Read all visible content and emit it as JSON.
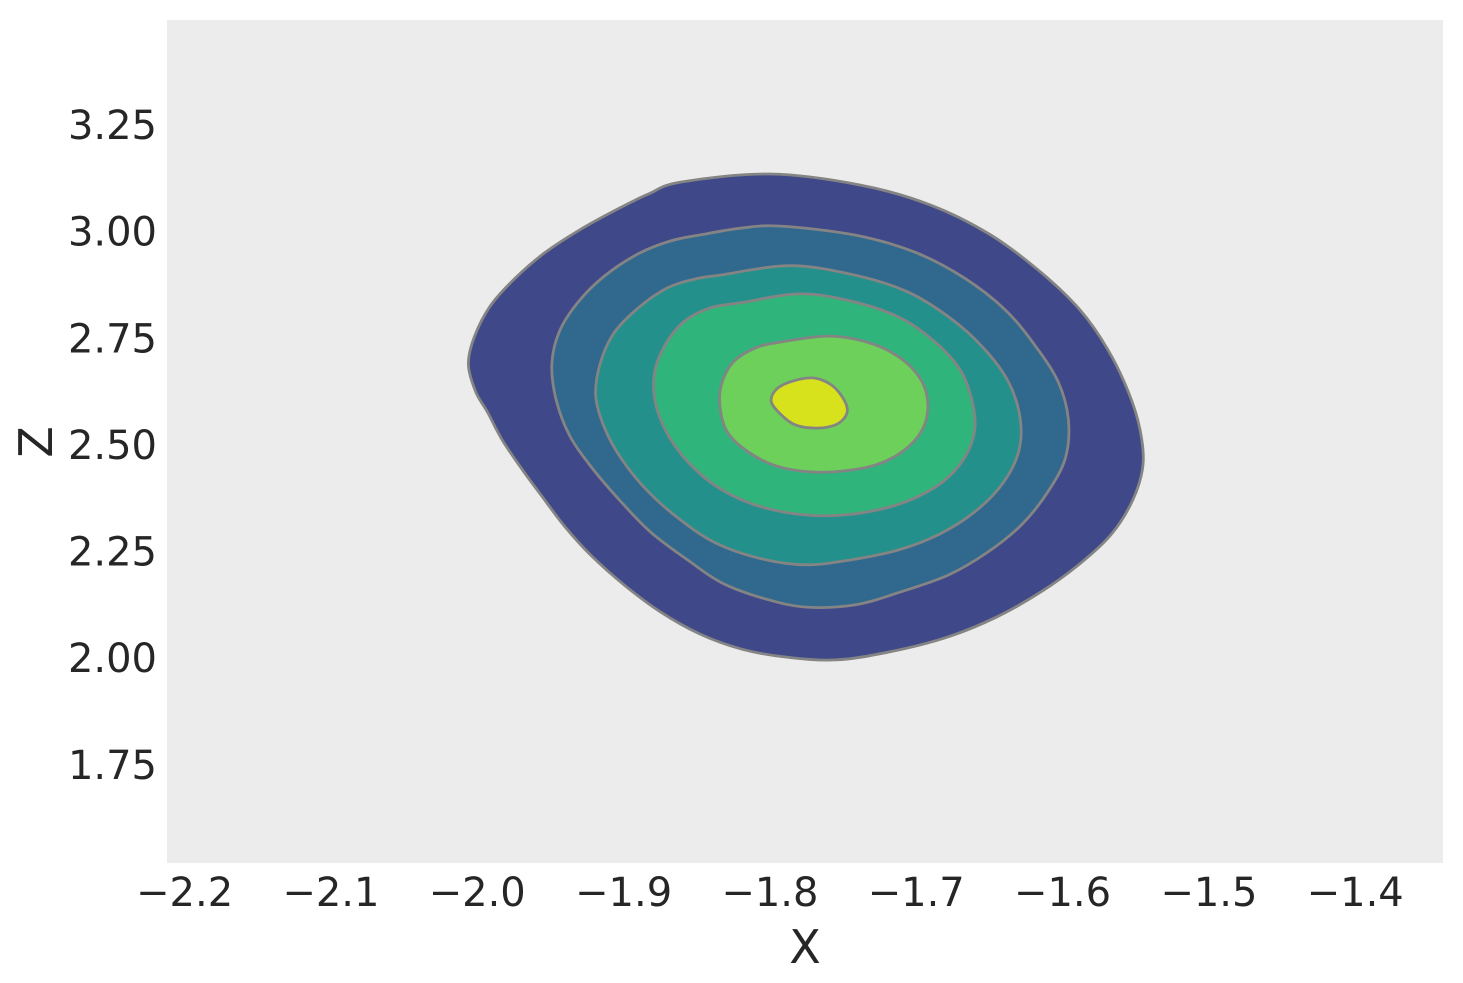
{
  "figure": {
    "background": "#ffffff",
    "plot_bg": "#ececec",
    "text_color": "#262626"
  },
  "chart_data": {
    "type": "contour-kde-filled",
    "title": "",
    "xlabel": "X",
    "ylabel": "Z",
    "xlim": [
      -2.212,
      -1.34
    ],
    "ylim": [
      1.52,
      3.496
    ],
    "grid": false,
    "legend": "none",
    "contour_line_color": "#848484",
    "x_tick_values": [
      -2.2,
      -2.1,
      -2.0,
      -1.9,
      -1.8,
      -1.7,
      -1.6,
      -1.5,
      -1.4
    ],
    "x_tick_labels": [
      "−2.2",
      "−2.1",
      "−2.0",
      "−1.9",
      "−1.8",
      "−1.7",
      "−1.6",
      "−1.5",
      "−1.4"
    ],
    "y_tick_values": [
      1.75,
      2.0,
      2.25,
      2.5,
      2.75,
      3.0,
      3.25
    ],
    "y_tick_labels": [
      "1.75",
      "2.00",
      "2.25",
      "2.50",
      "2.75",
      "3.00",
      "3.25"
    ],
    "peak": {
      "x": -1.775,
      "z": 2.6
    },
    "levels": [
      {
        "name": "density-level-1",
        "fill": "#3f4889",
        "points": [
          [
            -1.861,
            3.116
          ],
          [
            -1.8,
            3.135
          ],
          [
            -1.738,
            3.109
          ],
          [
            -1.69,
            3.062
          ],
          [
            -1.649,
            2.992
          ],
          [
            -1.615,
            2.905
          ],
          [
            -1.588,
            2.816
          ],
          [
            -1.569,
            2.723
          ],
          [
            -1.555,
            2.624
          ],
          [
            -1.547,
            2.535
          ],
          [
            -1.545,
            2.453
          ],
          [
            -1.552,
            2.371
          ],
          [
            -1.567,
            2.289
          ],
          [
            -1.589,
            2.219
          ],
          [
            -1.615,
            2.155
          ],
          [
            -1.646,
            2.095
          ],
          [
            -1.68,
            2.048
          ],
          [
            -1.718,
            2.015
          ],
          [
            -1.755,
            1.996
          ],
          [
            -1.79,
            2.003
          ],
          [
            -1.82,
            2.022
          ],
          [
            -1.848,
            2.057
          ],
          [
            -1.875,
            2.109
          ],
          [
            -1.899,
            2.17
          ],
          [
            -1.922,
            2.24
          ],
          [
            -1.94,
            2.308
          ],
          [
            -1.955,
            2.376
          ],
          [
            -1.969,
            2.441
          ],
          [
            -1.983,
            2.512
          ],
          [
            -1.993,
            2.577
          ],
          [
            -2.001,
            2.624
          ],
          [
            -2.006,
            2.688
          ],
          [
            -2.002,
            2.753
          ],
          [
            -1.991,
            2.826
          ],
          [
            -1.974,
            2.891
          ],
          [
            -1.954,
            2.95
          ],
          [
            -1.93,
            3.004
          ],
          [
            -1.904,
            3.053
          ],
          [
            -1.883,
            3.088
          ]
        ]
      },
      {
        "name": "density-level-2",
        "fill": "#31688e",
        "points": [
          [
            -1.793,
            3.013
          ],
          [
            -1.742,
            2.992
          ],
          [
            -1.701,
            2.952
          ],
          [
            -1.667,
            2.891
          ],
          [
            -1.639,
            2.816
          ],
          [
            -1.619,
            2.734
          ],
          [
            -1.603,
            2.648
          ],
          [
            -1.596,
            2.559
          ],
          [
            -1.598,
            2.47
          ],
          [
            -1.61,
            2.39
          ],
          [
            -1.628,
            2.313
          ],
          [
            -1.651,
            2.249
          ],
          [
            -1.678,
            2.195
          ],
          [
            -1.711,
            2.155
          ],
          [
            -1.742,
            2.125
          ],
          [
            -1.776,
            2.12
          ],
          [
            -1.805,
            2.141
          ],
          [
            -1.833,
            2.177
          ],
          [
            -1.856,
            2.23
          ],
          [
            -1.881,
            2.294
          ],
          [
            -1.901,
            2.364
          ],
          [
            -1.922,
            2.448
          ],
          [
            -1.937,
            2.523
          ],
          [
            -1.946,
            2.605
          ],
          [
            -1.949,
            2.688
          ],
          [
            -1.944,
            2.765
          ],
          [
            -1.931,
            2.835
          ],
          [
            -1.913,
            2.896
          ],
          [
            -1.89,
            2.948
          ],
          [
            -1.868,
            2.978
          ],
          [
            -1.848,
            2.992
          ],
          [
            -1.82,
            3.008
          ]
        ]
      },
      {
        "name": "density-level-3",
        "fill": "#23908b",
        "points": [
          [
            -1.786,
            2.92
          ],
          [
            -1.742,
            2.898
          ],
          [
            -1.706,
            2.859
          ],
          [
            -1.677,
            2.798
          ],
          [
            -1.654,
            2.727
          ],
          [
            -1.637,
            2.648
          ],
          [
            -1.629,
            2.563
          ],
          [
            -1.63,
            2.484
          ],
          [
            -1.641,
            2.409
          ],
          [
            -1.66,
            2.343
          ],
          [
            -1.684,
            2.291
          ],
          [
            -1.712,
            2.254
          ],
          [
            -1.744,
            2.231
          ],
          [
            -1.776,
            2.219
          ],
          [
            -1.808,
            2.235
          ],
          [
            -1.837,
            2.27
          ],
          [
            -1.861,
            2.324
          ],
          [
            -1.883,
            2.39
          ],
          [
            -1.901,
            2.465
          ],
          [
            -1.913,
            2.54
          ],
          [
            -1.919,
            2.615
          ],
          [
            -1.916,
            2.69
          ],
          [
            -1.907,
            2.76
          ],
          [
            -1.89,
            2.821
          ],
          [
            -1.87,
            2.868
          ],
          [
            -1.851,
            2.889
          ],
          [
            -1.834,
            2.898
          ]
        ]
      },
      {
        "name": "density-level-4",
        "fill": "#2fb47c",
        "points": [
          [
            -1.779,
            2.854
          ],
          [
            -1.742,
            2.835
          ],
          [
            -1.711,
            2.798
          ],
          [
            -1.687,
            2.741
          ],
          [
            -1.67,
            2.676
          ],
          [
            -1.662,
            2.606
          ],
          [
            -1.66,
            2.535
          ],
          [
            -1.667,
            2.47
          ],
          [
            -1.682,
            2.413
          ],
          [
            -1.704,
            2.371
          ],
          [
            -1.73,
            2.345
          ],
          [
            -1.759,
            2.334
          ],
          [
            -1.788,
            2.341
          ],
          [
            -1.814,
            2.364
          ],
          [
            -1.837,
            2.404
          ],
          [
            -1.856,
            2.46
          ],
          [
            -1.87,
            2.526
          ],
          [
            -1.878,
            2.596
          ],
          [
            -1.879,
            2.666
          ],
          [
            -1.872,
            2.732
          ],
          [
            -1.859,
            2.788
          ],
          [
            -1.841,
            2.821
          ],
          [
            -1.82,
            2.833
          ]
        ]
      },
      {
        "name": "density-level-5",
        "fill": "#6cd05a",
        "points": [
          [
            -1.759,
            2.755
          ],
          [
            -1.73,
            2.737
          ],
          [
            -1.709,
            2.699
          ],
          [
            -1.696,
            2.648
          ],
          [
            -1.692,
            2.591
          ],
          [
            -1.696,
            2.535
          ],
          [
            -1.708,
            2.488
          ],
          [
            -1.726,
            2.455
          ],
          [
            -1.749,
            2.439
          ],
          [
            -1.773,
            2.437
          ],
          [
            -1.796,
            2.451
          ],
          [
            -1.815,
            2.484
          ],
          [
            -1.829,
            2.53
          ],
          [
            -1.834,
            2.587
          ],
          [
            -1.833,
            2.643
          ],
          [
            -1.825,
            2.694
          ],
          [
            -1.81,
            2.727
          ],
          [
            -1.793,
            2.741
          ]
        ]
      },
      {
        "name": "density-level-6",
        "fill": "#d7e21c",
        "points": [
          [
            -1.771,
            2.657
          ],
          [
            -1.759,
            2.643
          ],
          [
            -1.751,
            2.615
          ],
          [
            -1.747,
            2.582
          ],
          [
            -1.751,
            2.556
          ],
          [
            -1.76,
            2.542
          ],
          [
            -1.773,
            2.54
          ],
          [
            -1.784,
            2.549
          ],
          [
            -1.793,
            2.573
          ],
          [
            -1.799,
            2.601
          ],
          [
            -1.796,
            2.629
          ],
          [
            -1.786,
            2.648
          ]
        ]
      }
    ]
  }
}
